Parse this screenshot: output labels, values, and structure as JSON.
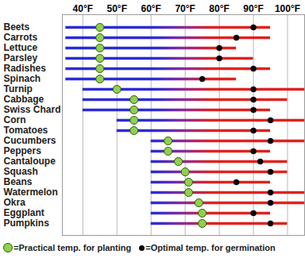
{
  "chart_data": {
    "type": "range",
    "orientation": "horizontal",
    "grid": true,
    "legend": "bottom",
    "categories": [
      "Beets",
      "Carrots",
      "Lettuce",
      "Parsley",
      "Radishes",
      "Spinach",
      "Turnip",
      "Cabbage",
      "Swiss Chard",
      "Corn",
      "Tomatoes",
      "Cucumbers",
      "Peppers",
      "Cantaloupe",
      "Squash",
      "Beans",
      "Watermelon",
      "Okra",
      "Eggplant",
      "Pumpkins"
    ],
    "min": [
      35,
      35,
      35,
      35,
      35,
      35,
      40,
      40,
      40,
      50,
      50,
      60,
      60,
      60,
      60,
      60,
      60,
      60,
      60,
      60
    ],
    "max": [
      95,
      95,
      85,
      90,
      95,
      85,
      105,
      100,
      95,
      105,
      95,
      105,
      95,
      100,
      100,
      95,
      105,
      105,
      95,
      100
    ],
    "series": [
      {
        "name": "=Practical temp. for planting",
        "color": "#8fd14f",
        "marker": "circle",
        "values": [
          45,
          45,
          45,
          45,
          45,
          45,
          50,
          55,
          55,
          55,
          55,
          65,
          65,
          68,
          70,
          71,
          71,
          74,
          75,
          75
        ]
      },
      {
        "name": "=Optimal temp. for germination",
        "color": "#000000",
        "marker": "circle",
        "values": [
          90,
          85,
          80,
          80,
          90,
          75,
          90,
          90,
          90,
          95,
          90,
          95,
          90,
          92,
          95,
          85,
          95,
          95,
          90,
          95
        ]
      }
    ],
    "xlim": [
      34,
      105
    ],
    "xticks": [
      {
        "value": 40,
        "label": "40°F"
      },
      {
        "value": 50,
        "label": "50°F"
      },
      {
        "value": 60,
        "label": "60°F"
      },
      {
        "value": 70,
        "label": "70°F"
      },
      {
        "value": 80,
        "label": "80°F"
      },
      {
        "value": 90,
        "label": "90°F"
      },
      {
        "value": 100,
        "label": "100°F"
      }
    ]
  }
}
